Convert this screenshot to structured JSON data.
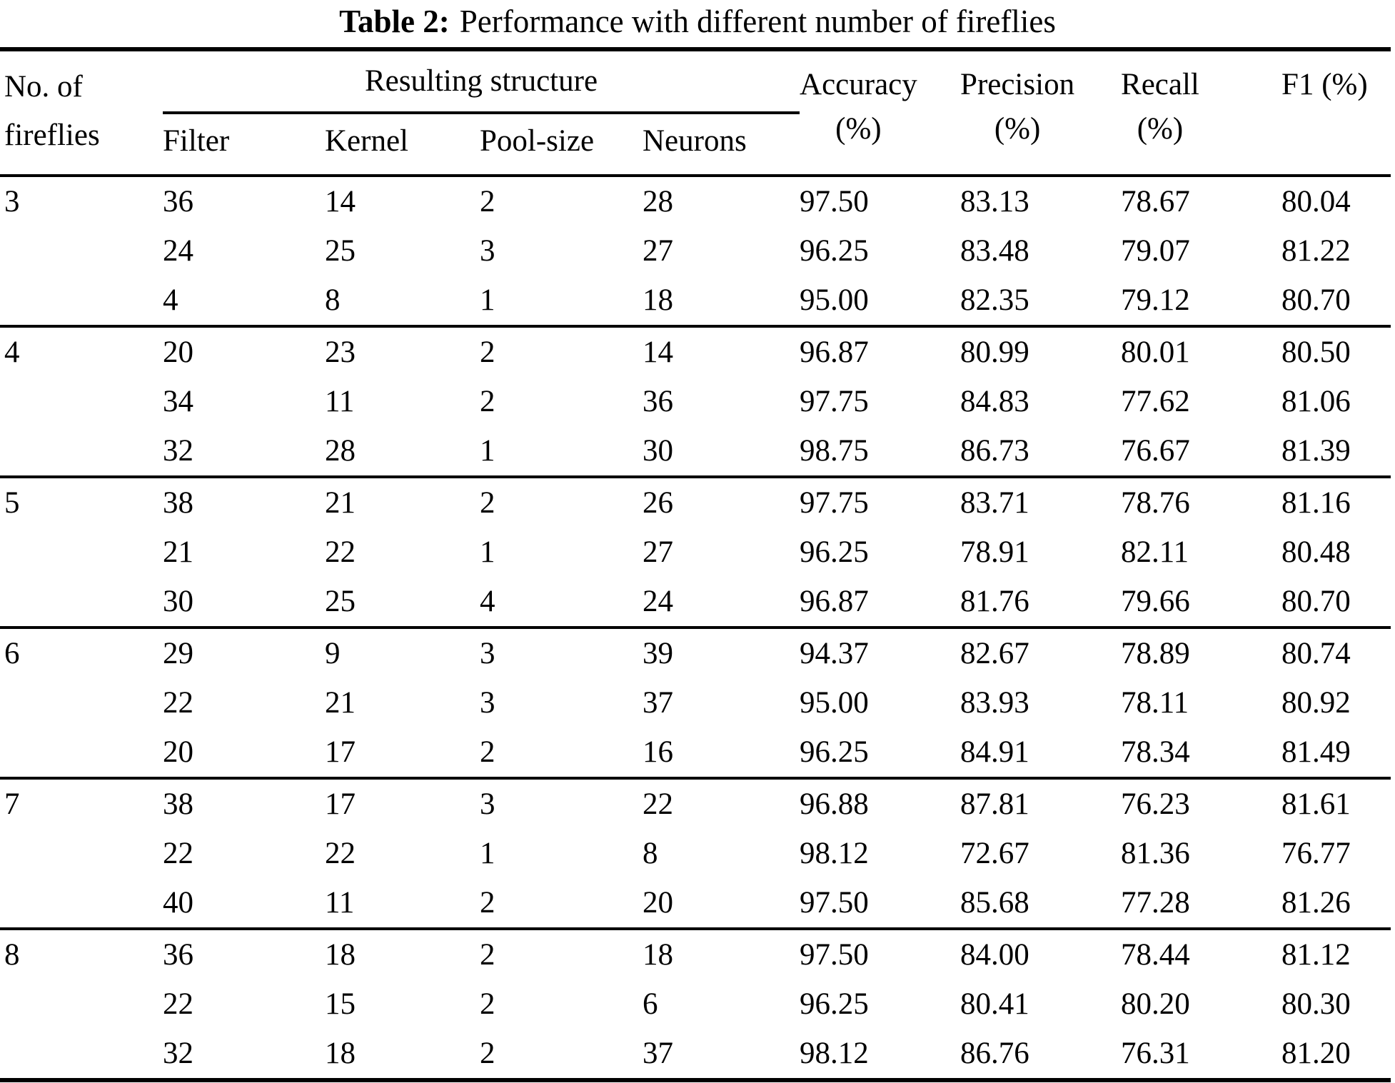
{
  "title": {
    "label": "Table 2:",
    "text": "Performance with different number of fireflies"
  },
  "table": {
    "row_header": {
      "line1": "No. of",
      "line2": "fireflies"
    },
    "span_header": "Resulting structure",
    "structure_columns": [
      "Filter",
      "Kernel",
      "Pool-size",
      "Neurons"
    ],
    "metric_columns": [
      {
        "line1": "Accuracy",
        "line2": "(%)"
      },
      {
        "line1": "Precision",
        "line2": "(%)"
      },
      {
        "line1": "Recall",
        "line2": "(%)"
      },
      {
        "line1": "F1 (%)",
        "line2": ""
      }
    ],
    "groups": [
      {
        "fireflies": "3",
        "rows": [
          {
            "filter": "36",
            "kernel": "14",
            "pool_size": "2",
            "neurons": "28",
            "accuracy": "97.50",
            "precision": "83.13",
            "recall": "78.67",
            "f1": "80.04"
          },
          {
            "filter": "24",
            "kernel": "25",
            "pool_size": "3",
            "neurons": "27",
            "accuracy": "96.25",
            "precision": "83.48",
            "recall": "79.07",
            "f1": "81.22"
          },
          {
            "filter": "4",
            "kernel": "8",
            "pool_size": "1",
            "neurons": "18",
            "accuracy": "95.00",
            "precision": "82.35",
            "recall": "79.12",
            "f1": "80.70"
          }
        ]
      },
      {
        "fireflies": "4",
        "rows": [
          {
            "filter": "20",
            "kernel": "23",
            "pool_size": "2",
            "neurons": "14",
            "accuracy": "96.87",
            "precision": "80.99",
            "recall": "80.01",
            "f1": "80.50"
          },
          {
            "filter": "34",
            "kernel": "11",
            "pool_size": "2",
            "neurons": "36",
            "accuracy": "97.75",
            "precision": "84.83",
            "recall": "77.62",
            "f1": "81.06"
          },
          {
            "filter": "32",
            "kernel": "28",
            "pool_size": "1",
            "neurons": "30",
            "accuracy": "98.75",
            "precision": "86.73",
            "recall": "76.67",
            "f1": "81.39"
          }
        ]
      },
      {
        "fireflies": "5",
        "rows": [
          {
            "filter": "38",
            "kernel": "21",
            "pool_size": "2",
            "neurons": "26",
            "accuracy": "97.75",
            "precision": "83.71",
            "recall": "78.76",
            "f1": "81.16"
          },
          {
            "filter": "21",
            "kernel": "22",
            "pool_size": "1",
            "neurons": "27",
            "accuracy": "96.25",
            "precision": "78.91",
            "recall": "82.11",
            "f1": "80.48"
          },
          {
            "filter": "30",
            "kernel": "25",
            "pool_size": "4",
            "neurons": "24",
            "accuracy": "96.87",
            "precision": "81.76",
            "recall": "79.66",
            "f1": "80.70"
          }
        ]
      },
      {
        "fireflies": "6",
        "rows": [
          {
            "filter": "29",
            "kernel": "9",
            "pool_size": "3",
            "neurons": "39",
            "accuracy": "94.37",
            "precision": "82.67",
            "recall": "78.89",
            "f1": "80.74"
          },
          {
            "filter": "22",
            "kernel": "21",
            "pool_size": "3",
            "neurons": "37",
            "accuracy": "95.00",
            "precision": "83.93",
            "recall": "78.11",
            "f1": "80.92"
          },
          {
            "filter": "20",
            "kernel": "17",
            "pool_size": "2",
            "neurons": "16",
            "accuracy": "96.25",
            "precision": "84.91",
            "recall": "78.34",
            "f1": "81.49"
          }
        ]
      },
      {
        "fireflies": "7",
        "rows": [
          {
            "filter": "38",
            "kernel": "17",
            "pool_size": "3",
            "neurons": "22",
            "accuracy": "96.88",
            "precision": "87.81",
            "recall": "76.23",
            "f1": "81.61"
          },
          {
            "filter": "22",
            "kernel": "22",
            "pool_size": "1",
            "neurons": "8",
            "accuracy": "98.12",
            "precision": "72.67",
            "recall": "81.36",
            "f1": "76.77"
          },
          {
            "filter": "40",
            "kernel": "11",
            "pool_size": "2",
            "neurons": "20",
            "accuracy": "97.50",
            "precision": "85.68",
            "recall": "77.28",
            "f1": "81.26"
          }
        ]
      },
      {
        "fireflies": "8",
        "rows": [
          {
            "filter": "36",
            "kernel": "18",
            "pool_size": "2",
            "neurons": "18",
            "accuracy": "97.50",
            "precision": "84.00",
            "recall": "78.44",
            "f1": "81.12"
          },
          {
            "filter": "22",
            "kernel": "15",
            "pool_size": "2",
            "neurons": "6",
            "accuracy": "96.25",
            "precision": "80.41",
            "recall": "80.20",
            "f1": "80.30"
          },
          {
            "filter": "32",
            "kernel": "18",
            "pool_size": "2",
            "neurons": "37",
            "accuracy": "98.12",
            "precision": "86.76",
            "recall": "76.31",
            "f1": "81.20"
          }
        ]
      }
    ]
  }
}
